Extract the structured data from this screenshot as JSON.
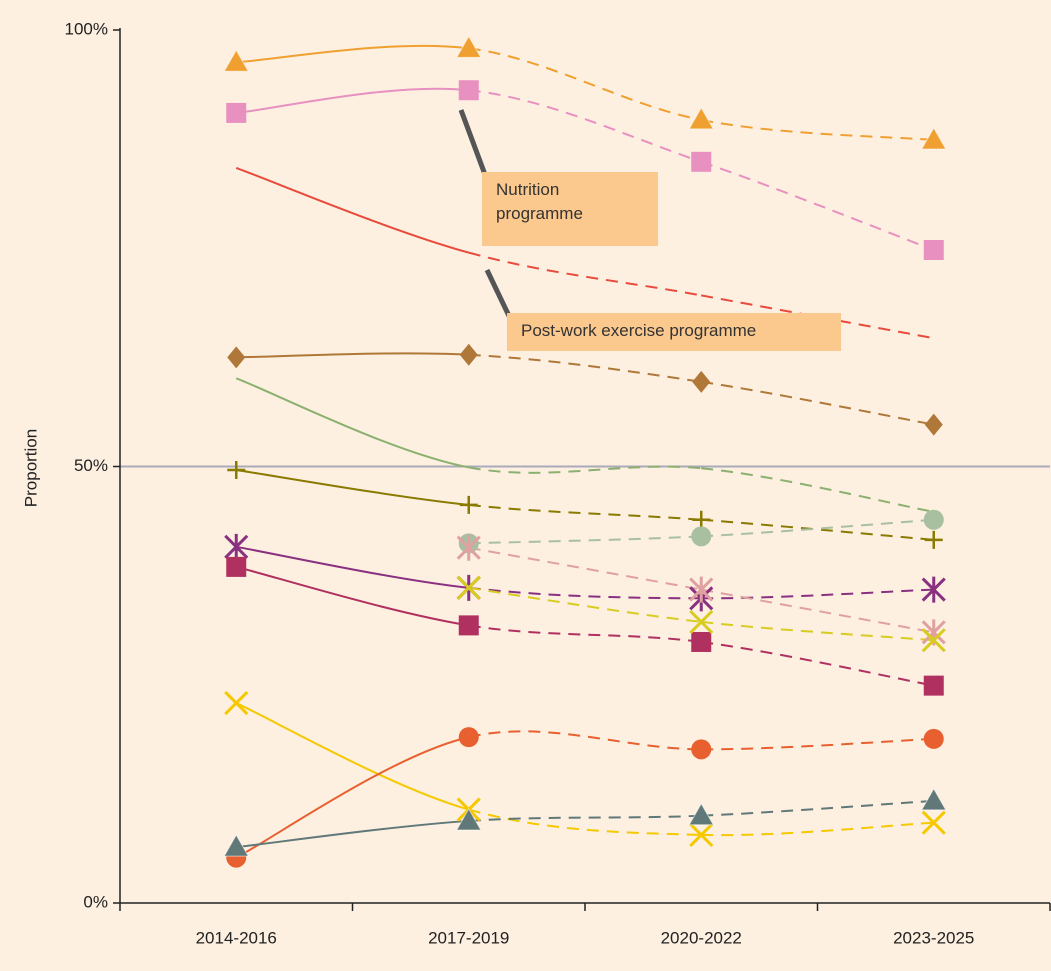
{
  "chart_data": {
    "type": "line",
    "y_label": "Proportion",
    "categories": [
      "2014-2016",
      "2017-2019",
      "2020-2022",
      "2023-2025"
    ],
    "ylim": [
      0,
      100
    ],
    "yticks": [
      {
        "value": 0,
        "label": "0%"
      },
      {
        "value": 50,
        "label": "50%"
      },
      {
        "value": 100,
        "label": "100%"
      }
    ],
    "reference_line": 50,
    "segment_styles": [
      "solid",
      "dashed",
      "dashed"
    ],
    "annotations": [
      {
        "text": "Nutrition programme"
      },
      {
        "text": "Post-work exercise programme"
      }
    ],
    "series": [
      {
        "color": "#f0a030",
        "marker": "triangle",
        "values": [
          96.3,
          97.9,
          89.7,
          87.4
        ]
      },
      {
        "color": "#e890c0",
        "marker": "square",
        "values": [
          90.5,
          93.1,
          84.9,
          74.8
        ]
      },
      {
        "color": "#e84a3c",
        "marker": "none",
        "values": [
          84.2,
          74.5,
          69.6,
          64.7
        ]
      },
      {
        "color": "#b07838",
        "marker": "diamond",
        "values": [
          62.5,
          62.8,
          59.7,
          54.8
        ]
      },
      {
        "color": "#8cb070",
        "marker": "none",
        "values": [
          60.1,
          49.9,
          49.8,
          44.8
        ]
      },
      {
        "color": "#8a7a00",
        "marker": "plus",
        "values": [
          49.6,
          45.6,
          43.9,
          41.6
        ]
      },
      {
        "color": "#a8c0a0",
        "marker": "circle",
        "values": [
          null,
          41.2,
          42.0,
          43.9
        ]
      },
      {
        "color": "#8a3080",
        "marker": "asterisk",
        "values": [
          40.8,
          36.1,
          34.9,
          35.9
        ]
      },
      {
        "color": "#e0a0a0",
        "marker": "asterisk",
        "values": [
          null,
          40.7,
          35.9,
          31.0
        ]
      },
      {
        "color": "#b03060",
        "marker": "square",
        "values": [
          38.5,
          31.8,
          29.9,
          24.9
        ]
      },
      {
        "color": "#d8cc20",
        "marker": "x",
        "values": [
          null,
          36.1,
          32.2,
          30.1
        ]
      },
      {
        "color": "#f5c800",
        "marker": "x",
        "values": [
          22.9,
          10.7,
          7.8,
          9.2
        ]
      },
      {
        "color": "#e86030",
        "marker": "circle",
        "values": [
          5.2,
          19.0,
          17.6,
          18.8
        ]
      },
      {
        "color": "#607878",
        "marker": "triangle",
        "values": [
          6.4,
          9.4,
          10.0,
          11.7
        ]
      }
    ]
  }
}
